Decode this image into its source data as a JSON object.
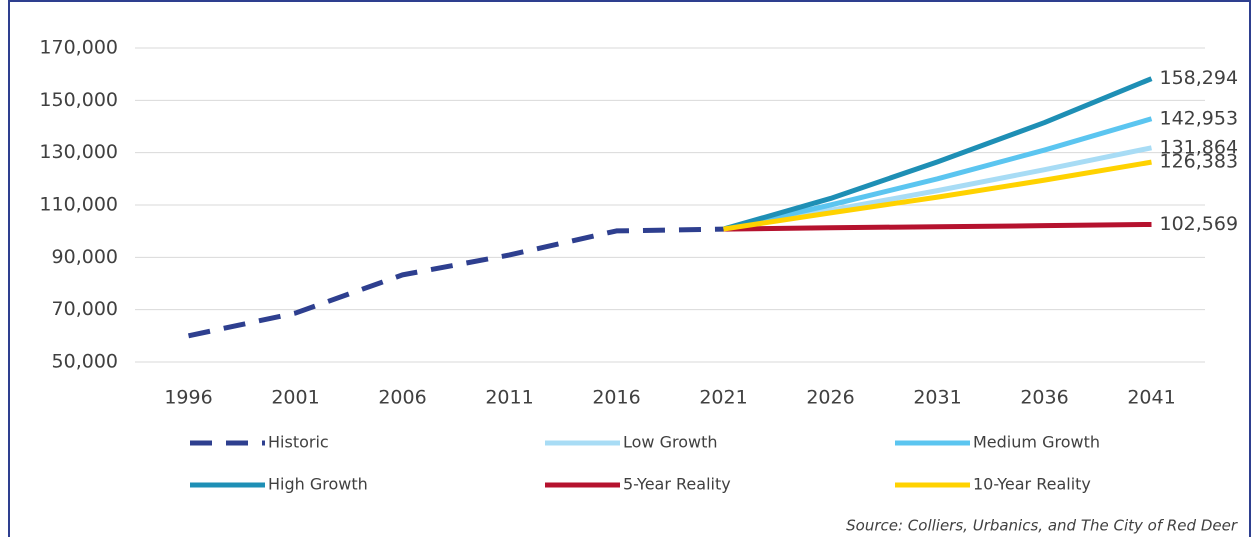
{
  "chart_data": {
    "type": "line",
    "categories": [
      "1996",
      "2001",
      "2006",
      "2011",
      "2016",
      "2021",
      "2026",
      "2031",
      "2036",
      "2041"
    ],
    "series": [
      {
        "name": "Historic",
        "color": "#2e3f8f",
        "style": "dashed",
        "values": [
          60000,
          68700,
          83300,
          90900,
          100100,
          100800,
          null,
          null,
          null,
          null
        ]
      },
      {
        "name": "Low Growth",
        "color": "#a8dcf5",
        "values": [
          null,
          null,
          null,
          null,
          null,
          100800,
          108000,
          115500,
          123500,
          131864
        ],
        "value_labels": [
          null,
          null,
          null,
          null,
          null,
          null,
          null,
          null,
          null,
          "131,864"
        ]
      },
      {
        "name": "Medium Growth",
        "color": "#5bc5f0",
        "values": [
          null,
          null,
          null,
          null,
          null,
          100800,
          110000,
          120000,
          131000,
          142953
        ],
        "value_labels": [
          null,
          null,
          null,
          null,
          null,
          null,
          null,
          null,
          null,
          "142,953"
        ]
      },
      {
        "name": "High Growth",
        "color": "#1e8fb5",
        "values": [
          null,
          null,
          null,
          null,
          null,
          100800,
          112500,
          126500,
          141500,
          158294
        ],
        "value_labels": [
          null,
          null,
          null,
          null,
          null,
          null,
          null,
          null,
          null,
          "158,294"
        ]
      },
      {
        "name": "5-Year Reality",
        "color": "#b5122e",
        "values": [
          null,
          null,
          null,
          null,
          null,
          100800,
          101300,
          101700,
          102100,
          102569
        ],
        "value_labels": [
          null,
          null,
          null,
          null,
          null,
          null,
          null,
          null,
          null,
          "102,569"
        ]
      },
      {
        "name": "10-Year Reality",
        "color": "#ffd200",
        "values": [
          null,
          null,
          null,
          null,
          null,
          100800,
          107000,
          113000,
          119500,
          126383
        ],
        "value_labels": [
          null,
          null,
          null,
          null,
          null,
          null,
          null,
          null,
          null,
          "126,383"
        ]
      }
    ],
    "ylim": [
      50000,
      170000
    ],
    "yticks": [
      {
        "value": 50000,
        "label": "50,000"
      },
      {
        "value": 70000,
        "label": "70,000"
      },
      {
        "value": 90000,
        "label": "90,000"
      },
      {
        "value": 110000,
        "label": "110,000"
      },
      {
        "value": 130000,
        "label": "130,000"
      },
      {
        "value": 150000,
        "label": "150,000"
      },
      {
        "value": 170000,
        "label": "170,000"
      }
    ],
    "grid": true,
    "legend": "bottom",
    "source": "Source: Colliers, Urbanics, and The City of Red Deer"
  }
}
